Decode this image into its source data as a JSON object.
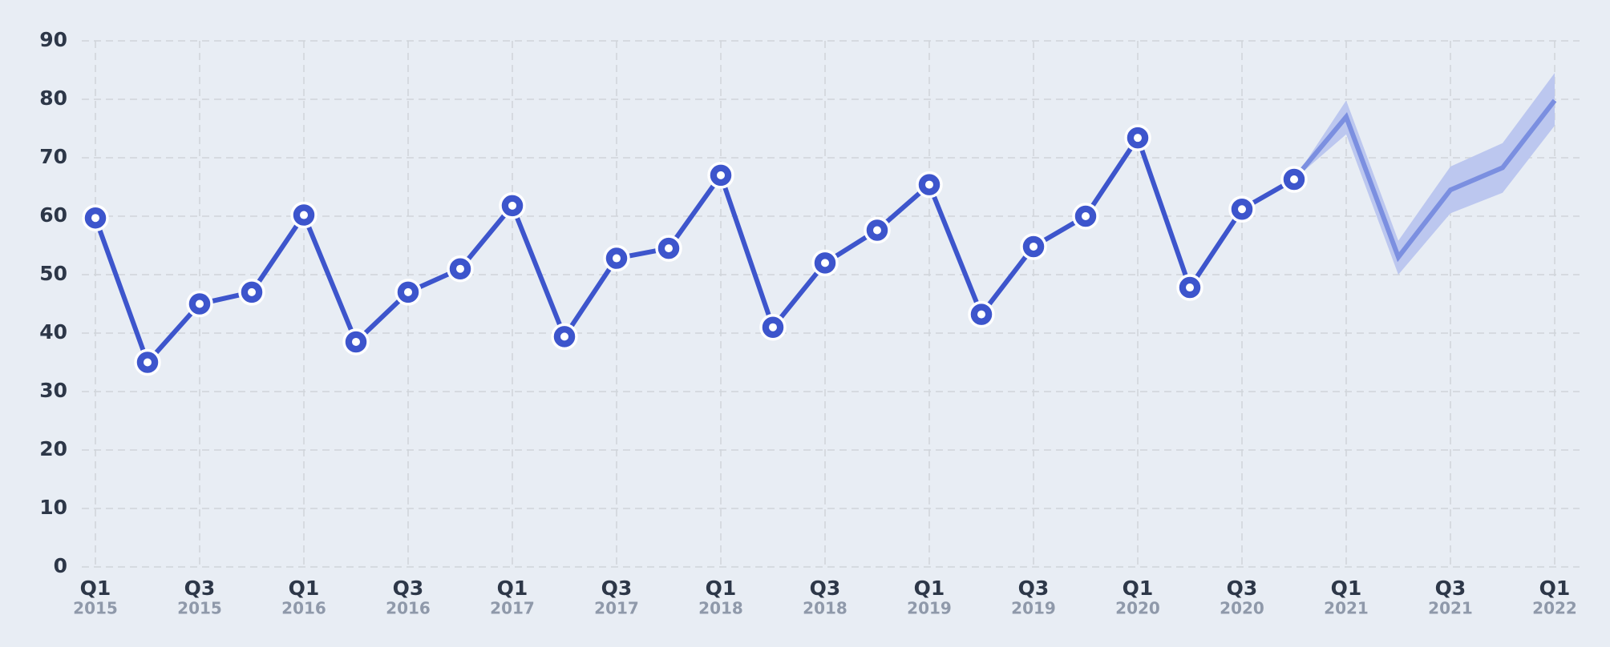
{
  "chart_data": {
    "type": "line",
    "categories": [
      [
        "Q1",
        "2015"
      ],
      null,
      [
        "Q3",
        "2015"
      ],
      null,
      [
        "Q1",
        "2016"
      ],
      null,
      [
        "Q3",
        "2016"
      ],
      null,
      [
        "Q1",
        "2017"
      ],
      null,
      [
        "Q3",
        "2017"
      ],
      null,
      [
        "Q1",
        "2018"
      ],
      null,
      [
        "Q3",
        "2018"
      ],
      null,
      [
        "Q1",
        "2019"
      ],
      null,
      [
        "Q3",
        "2019"
      ],
      null,
      [
        "Q1",
        "2020"
      ],
      null,
      [
        "Q3",
        "2020"
      ],
      null,
      [
        "Q1",
        "2021"
      ],
      null,
      [
        "Q3",
        "2021"
      ],
      null,
      [
        "Q1",
        "2022"
      ]
    ],
    "series": [
      {
        "color": "#3d55cc",
        "markers": true,
        "values": [
          59.7,
          35,
          45,
          47,
          60.2,
          38.5,
          47,
          51,
          61.8,
          39.4,
          52.8,
          54.5,
          67,
          41,
          52,
          57.6,
          65.4,
          43.2,
          54.8,
          60,
          73.4,
          47.8,
          61.2,
          66.3,
          null,
          null,
          null,
          null,
          null
        ]
      },
      {
        "color": "#7b8fe0",
        "band_color": "#bcc7ef",
        "markers": false,
        "values": [
          null,
          null,
          null,
          null,
          null,
          null,
          null,
          null,
          null,
          null,
          null,
          null,
          null,
          null,
          null,
          null,
          null,
          null,
          null,
          null,
          null,
          null,
          null,
          66.3,
          77,
          53,
          64.5,
          68.3,
          79.8
        ],
        "lower": [
          null,
          null,
          null,
          null,
          null,
          null,
          null,
          null,
          null,
          null,
          null,
          null,
          null,
          null,
          null,
          null,
          null,
          null,
          null,
          null,
          null,
          null,
          null,
          66.3,
          74,
          50,
          60.5,
          64,
          75.5
        ],
        "upper": [
          null,
          null,
          null,
          null,
          null,
          null,
          null,
          null,
          null,
          null,
          null,
          null,
          null,
          null,
          null,
          null,
          null,
          null,
          null,
          null,
          null,
          null,
          null,
          66.3,
          79.8,
          55.8,
          68.5,
          72.5,
          84.5
        ]
      }
    ],
    "ylim": [
      0,
      90
    ],
    "yticks": [
      0,
      10,
      20,
      30,
      40,
      50,
      60,
      70,
      80,
      90
    ],
    "grid": true
  }
}
